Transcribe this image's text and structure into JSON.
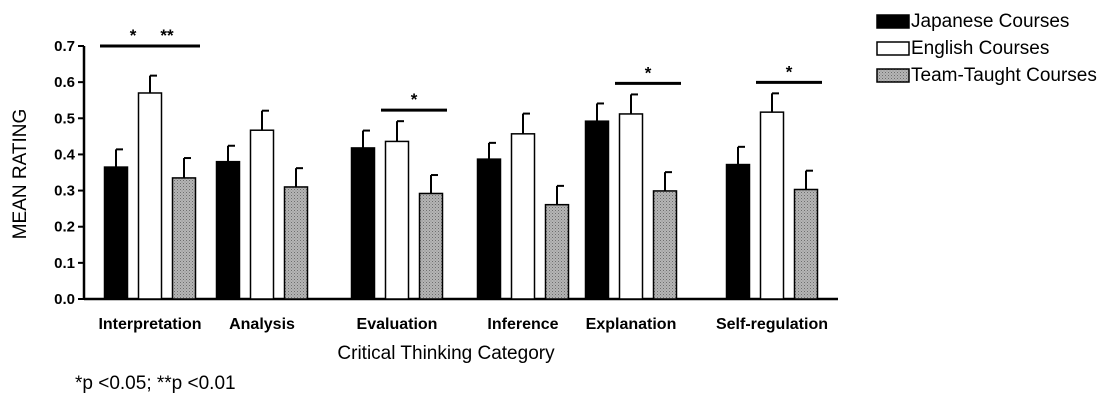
{
  "chart_data": {
    "type": "bar",
    "xlabel": "Critical Thinking Category",
    "ylabel": "MEAN RATING",
    "ylim": [
      0,
      0.7
    ],
    "yticks": [
      "0.0",
      "0.1",
      "0.2",
      "0.3",
      "0.4",
      "0.5",
      "0.6",
      "0.7"
    ],
    "categories": [
      "Interpretation",
      "Analysis",
      "Evaluation",
      "Inference",
      "Explanation",
      "Self-regulation"
    ],
    "series": [
      {
        "name": "Japanese Courses",
        "color": "#000000",
        "values": [
          0.365,
          0.38,
          0.418,
          0.387,
          0.492,
          0.372
        ],
        "errors": [
          0.049,
          0.044,
          0.048,
          0.045,
          0.049,
          0.049
        ]
      },
      {
        "name": "English Courses",
        "color": "#ffffff",
        "values": [
          0.57,
          0.467,
          0.436,
          0.457,
          0.512,
          0.517
        ],
        "errors": [
          0.048,
          0.054,
          0.056,
          0.056,
          0.054,
          0.052
        ]
      },
      {
        "name": "Team-Taught Courses",
        "color": "#a9a9a9",
        "values": [
          0.335,
          0.31,
          0.292,
          0.261,
          0.299,
          0.303
        ],
        "errors": [
          0.055,
          0.052,
          0.051,
          0.052,
          0.052,
          0.052
        ]
      }
    ],
    "significance": [
      {
        "category": 0,
        "from_series": 0,
        "to_series": 1,
        "label": "*"
      },
      {
        "category": 0,
        "from_series": 1,
        "to_series": 2,
        "label": "**"
      },
      {
        "category": 2,
        "from_series": 1,
        "to_series": 2,
        "label": "*"
      },
      {
        "category": 4,
        "from_series": 1,
        "to_series": 2,
        "label": "*"
      },
      {
        "category": 5,
        "from_series": 1,
        "to_series": 2,
        "label": "*"
      }
    ],
    "legend_position": "top-right",
    "grid": false,
    "footnote": "*p <0.05; **p <0.01"
  }
}
